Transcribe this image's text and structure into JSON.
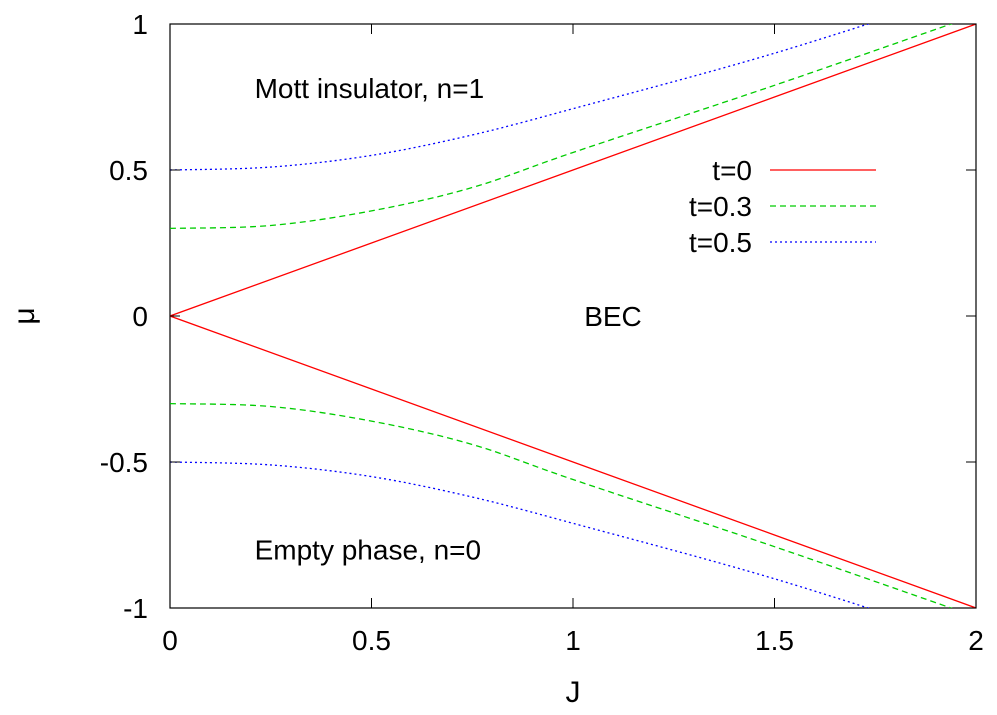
{
  "chart_data": {
    "type": "line",
    "xlabel": "J",
    "ylabel": "μ",
    "xlim": [
      0,
      2
    ],
    "ylim": [
      -1,
      1
    ],
    "x_ticks": [
      "0",
      "0.5",
      "1",
      "1.5",
      "2"
    ],
    "y_ticks": [
      "-1",
      "-0.5",
      "0",
      "0.5",
      "1"
    ],
    "grid": false,
    "legend_position": "right",
    "annotations": [
      {
        "text": "Mott insulator, n=1",
        "x": 0.2,
        "y": 0.78
      },
      {
        "text": "BEC",
        "x": 1.0,
        "y": 0.0
      },
      {
        "text": "Empty phase, n=0",
        "x": 0.2,
        "y": -0.8
      }
    ],
    "series": [
      {
        "name": "t=0",
        "t": 0,
        "color": "#ff0000",
        "dash": "solid",
        "x": [
          0,
          0.5,
          1,
          1.5,
          2
        ],
        "upper": [
          0,
          0.25,
          0.5,
          0.75,
          1.0
        ],
        "lower": [
          0,
          -0.25,
          -0.5,
          -0.75,
          -1.0
        ]
      },
      {
        "name": "t=0.3",
        "t": 0.3,
        "color": "#00cc00",
        "dash": "dashed",
        "x": [
          0,
          0.25,
          0.5,
          0.75,
          1,
          1.5,
          2
        ],
        "upper": [
          0.3,
          0.31,
          0.36,
          0.44,
          0.56,
          0.79,
          1.03
        ],
        "lower": [
          -0.3,
          -0.31,
          -0.36,
          -0.44,
          -0.56,
          -0.79,
          -1.03
        ]
      },
      {
        "name": "t=0.5",
        "t": 0.5,
        "color": "#0000ff",
        "dash": "dotted",
        "x": [
          0,
          0.25,
          0.5,
          0.75,
          1,
          1.5,
          2
        ],
        "upper": [
          0.5,
          0.51,
          0.55,
          0.62,
          0.71,
          0.9,
          1.12
        ],
        "lower": [
          -0.5,
          -0.51,
          -0.55,
          -0.62,
          -0.71,
          -0.9,
          -1.12
        ]
      }
    ]
  }
}
